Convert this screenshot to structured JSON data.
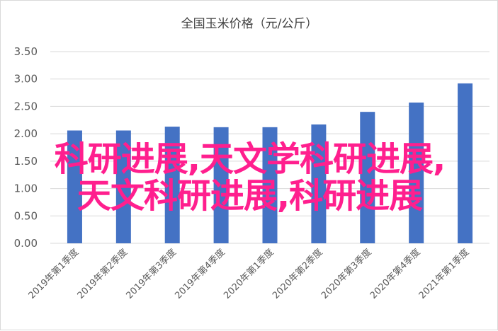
{
  "chart_data": {
    "type": "bar",
    "title": "全国玉米价格（元/公斤）",
    "xlabel": "",
    "ylabel": "",
    "categories": [
      "2019年第1季度",
      "2019年第2季度",
      "2019年第3季度",
      "2019年第4季度",
      "2020年第1季度",
      "2020年第2季度",
      "2020年第3季度",
      "2020年第4季度",
      "2021年第1季度"
    ],
    "values": [
      2.06,
      2.06,
      2.13,
      2.12,
      2.12,
      2.17,
      2.4,
      2.57,
      2.92
    ],
    "ylim": [
      0,
      3.5
    ],
    "yticks": [
      "0.00",
      "0.50",
      "1.00",
      "1.50",
      "2.00",
      "2.50",
      "3.00",
      "3.50"
    ],
    "grid": true,
    "bar_color": "#4472c4"
  },
  "overlay": {
    "line1": "科研进展,天文学科研进展,",
    "line2": "天文科研进展,科研进展",
    "color": "#ff1f8e"
  }
}
